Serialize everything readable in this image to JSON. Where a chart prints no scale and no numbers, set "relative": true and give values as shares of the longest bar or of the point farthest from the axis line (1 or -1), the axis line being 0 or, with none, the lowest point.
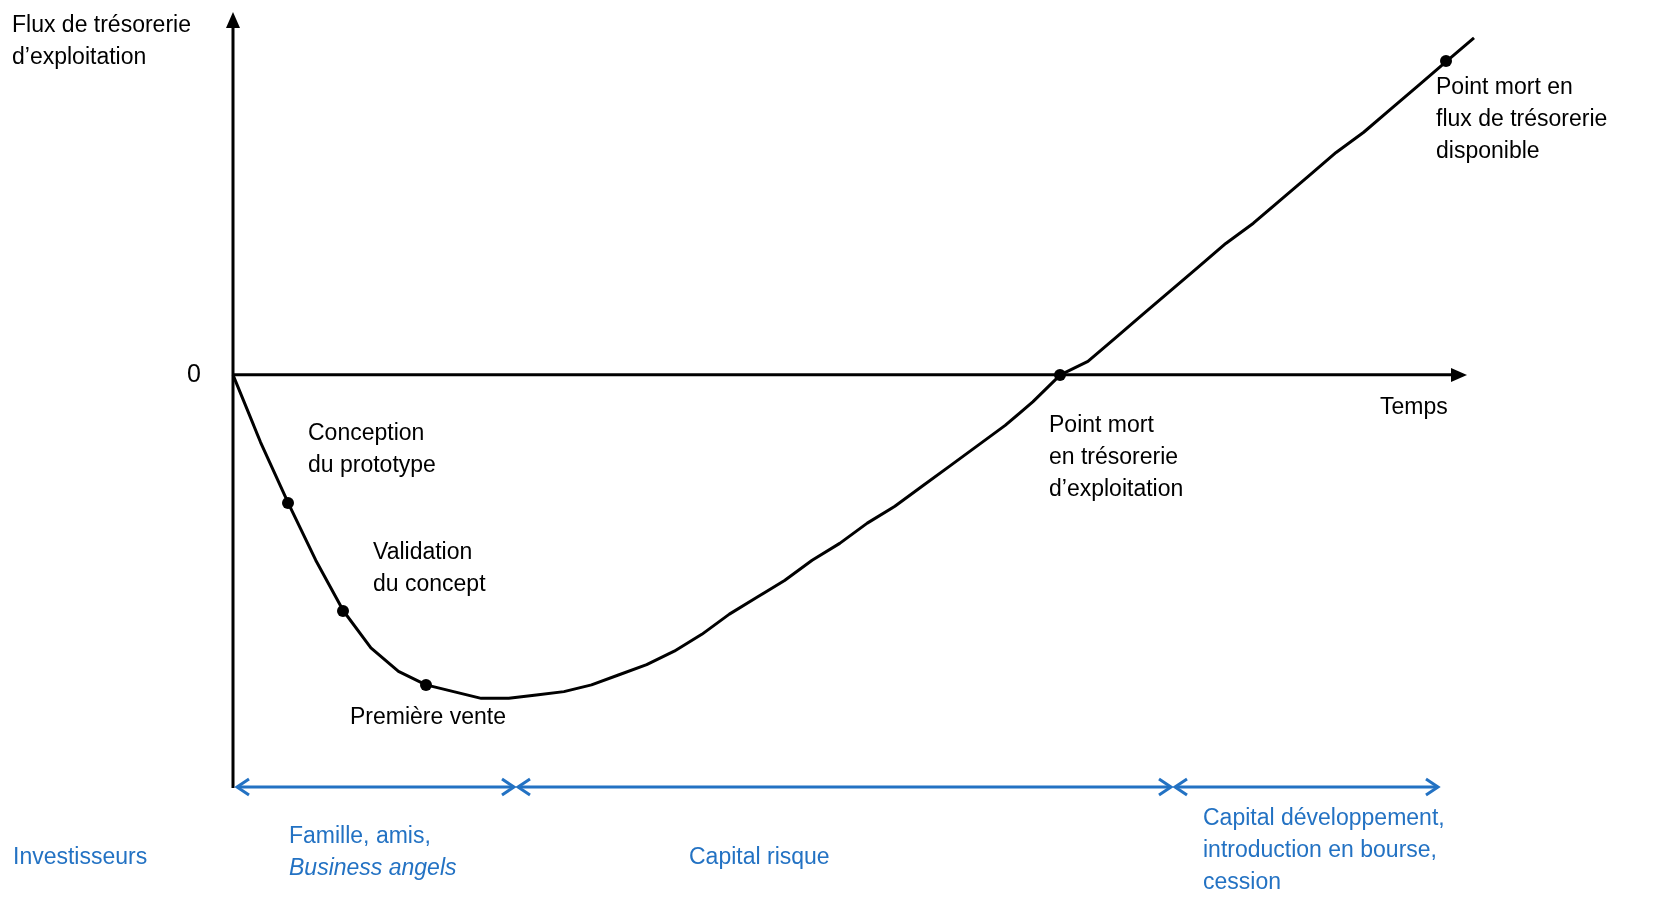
{
  "chart_data": {
    "type": "line",
    "ylabel": "Flux de trésorerie d’exploitation",
    "xlabel": "Temps",
    "relative": true,
    "categories": [
      null,
      null,
      null,
      null,
      null,
      null,
      null,
      null,
      null,
      null,
      null,
      null,
      null,
      null,
      null,
      null,
      null,
      null,
      null,
      null,
      null,
      null,
      null,
      null,
      null,
      null,
      null,
      null,
      null,
      null,
      null,
      null,
      null,
      null,
      null,
      null,
      null,
      null,
      null,
      null,
      null,
      null,
      null,
      null,
      null,
      null
    ],
    "series": [
      {
        "color": "#000000",
        "marker": "none",
        "line_style": "solid",
        "values": [
          0,
          -0.2,
          -0.38,
          -0.55,
          -0.7,
          -0.81,
          -0.88,
          -0.92,
          -0.94,
          -0.96,
          -0.96,
          -0.95,
          -0.94,
          -0.92,
          -0.89,
          -0.86,
          -0.82,
          -0.77,
          -0.71,
          -0.66,
          -0.61,
          -0.55,
          -0.5,
          -0.44,
          -0.39,
          -0.33,
          -0.27,
          -0.21,
          -0.15,
          -0.08,
          0,
          0.04,
          0.11,
          0.18,
          0.25,
          0.32,
          0.39,
          0.45,
          0.52,
          0.59,
          0.66,
          0.72,
          0.79,
          0.86,
          0.93,
          1
        ]
      }
    ],
    "ref_lines": [
      {
        "axis": "y",
        "value": 0,
        "label": "0"
      }
    ],
    "annotations": [
      "Conception\ndu prototype",
      "Validation\ndu concept",
      "Première vente",
      "Point mort\nen trésorerie\nd’exploitation",
      "Point mort en\nflux de trésorerie\ndisponible",
      "Investisseurs",
      "Famille, amis,\nBusiness angels",
      "Capital risque",
      "Capital développement,\nintroduction en bourse,\ncession"
    ]
  }
}
